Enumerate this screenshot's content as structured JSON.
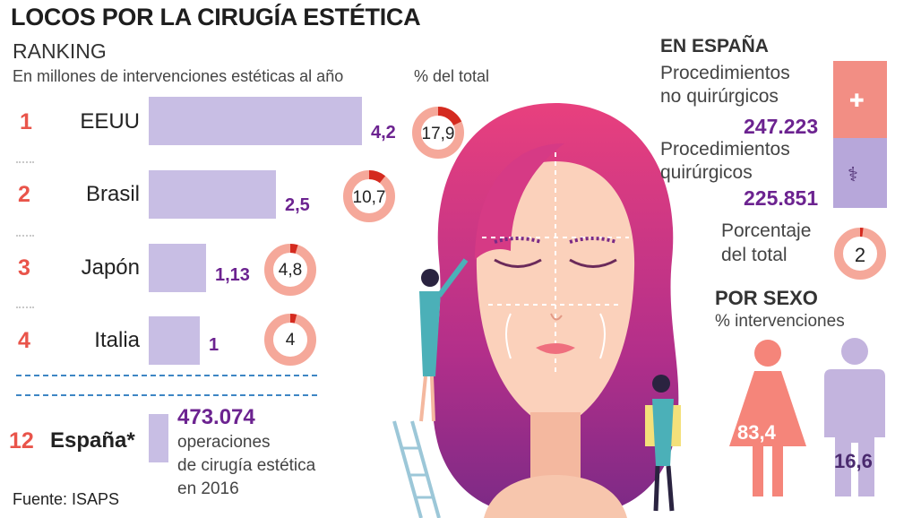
{
  "title": "LOCOS POR LA CIRUGÍA ESTÉTICA",
  "ranking_heading": "RANKING",
  "subtitle": "En millones de intervenciones estéticas al año",
  "pct_heading": "% del total",
  "chart_data": {
    "type": "bar",
    "categories": [
      "EEUU",
      "Brasil",
      "Japón",
      "Italia"
    ],
    "ranks": [
      "1",
      "2",
      "3",
      "4"
    ],
    "values": [
      4.2,
      2.5,
      1.13,
      1
    ],
    "value_labels": [
      "4,2",
      "2,5",
      "1,13",
      "1"
    ],
    "percent_of_total": [
      17.9,
      10.7,
      4.8,
      4
    ],
    "percent_labels": [
      "17,9",
      "10,7",
      "4,8",
      "4"
    ],
    "title": "LOCOS POR LA CIRUGÍA ESTÉTICA",
    "ylabel": "En millones de intervenciones estéticas al año",
    "xlim": [
      0,
      4.2
    ]
  },
  "spain": {
    "rank": "12",
    "name": "España*",
    "value": "473.074",
    "line1": "operaciones",
    "line2": "de cirugía estética",
    "line3": "en 2016"
  },
  "source": "Fuente: ISAPS",
  "en_espana": {
    "heading": "EN ESPAÑA",
    "non_surgical_label_1": "Procedimientos",
    "non_surgical_label_2": "no quirúrgicos",
    "non_surgical_value": "247.223",
    "non_surgical_number": 247223,
    "surgical_label_1": "Procedimientos",
    "surgical_label_2": "quirúrgicos",
    "surgical_value": "225.851",
    "surgical_number": 225851,
    "pct_label_1": "Porcentaje",
    "pct_label_2": "del total",
    "pct_value": "2",
    "pct_number": 2
  },
  "por_sexo": {
    "heading": "POR SEXO",
    "subheading": "% intervenciones",
    "female_value": "83,4",
    "female_number": 83.4,
    "male_value": "16,6",
    "male_number": 16.6
  },
  "colors": {
    "accent_red": "#e9544a",
    "bar": "#c8bee4",
    "value_purple": "#6c2390",
    "donut_track": "#f5a89a",
    "donut_fill": "#d42a1f",
    "female": "#f5857a",
    "male": "#c3b4de"
  }
}
